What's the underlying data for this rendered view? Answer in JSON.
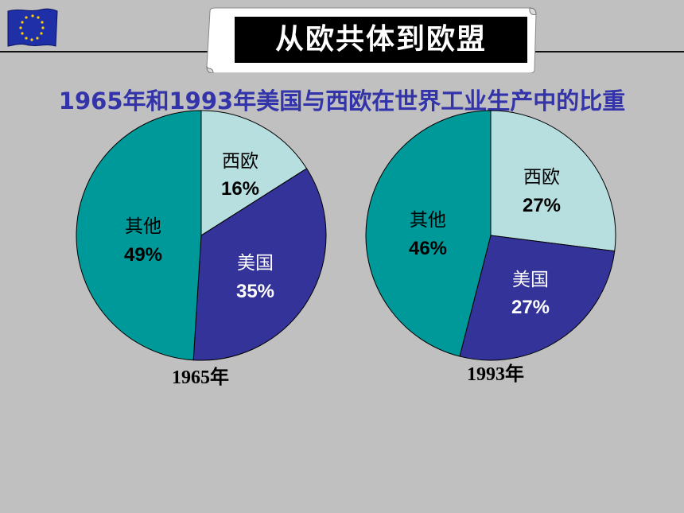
{
  "header": {
    "title": "从欧共体到欧盟",
    "subtitle": "1965年和1993年美国与西欧在世界工业生产中的比重"
  },
  "colors": {
    "other": "#009999",
    "us": "#333399",
    "western_europe": "#b8dfe0"
  },
  "chart_data": [
    {
      "type": "pie",
      "year_label": "1965年",
      "slices": [
        {
          "name": "西欧",
          "value": 16,
          "label": "16%"
        },
        {
          "name": "美国",
          "value": 35,
          "label": "35%"
        },
        {
          "name": "其他",
          "value": 49,
          "label": "49%"
        }
      ]
    },
    {
      "type": "pie",
      "year_label": "1993年",
      "slices": [
        {
          "name": "西欧",
          "value": 27,
          "label": "27%"
        },
        {
          "name": "美国",
          "value": 27,
          "label": "27%"
        },
        {
          "name": "其他",
          "value": 46,
          "label": "46%"
        }
      ]
    }
  ]
}
